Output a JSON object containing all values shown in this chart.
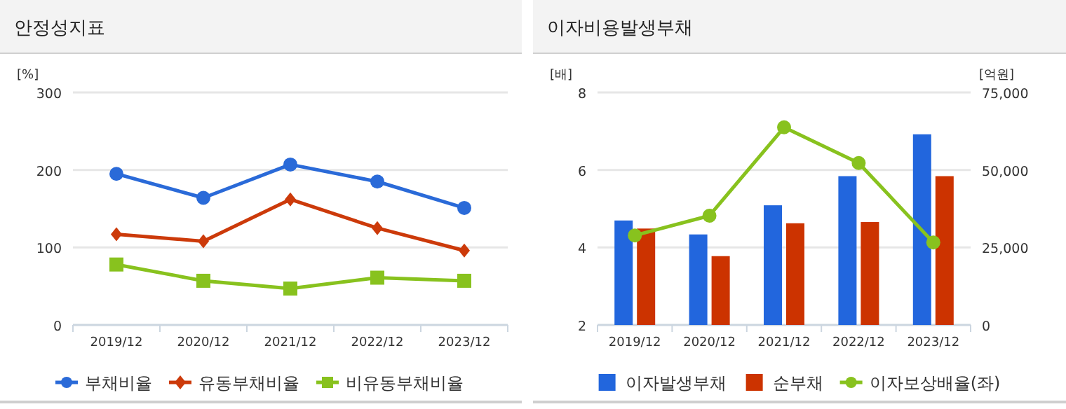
{
  "chart_data": [
    {
      "type": "line",
      "title": "안정성지표",
      "ylabel": "[%]",
      "categories": [
        "2019/12",
        "2020/12",
        "2021/12",
        "2022/12",
        "2023/12"
      ],
      "ylim": [
        0,
        300
      ],
      "yticks": [
        0,
        100,
        200,
        300
      ],
      "grid": "y",
      "legend": "bottom",
      "series": [
        {
          "name": "부채비율",
          "color": "#2a6ad8",
          "marker": "circle",
          "values": [
            195,
            164,
            207,
            185,
            151
          ]
        },
        {
          "name": "유동부채비율",
          "color": "#cc3a0a",
          "marker": "diamond",
          "values": [
            117,
            108,
            162,
            125,
            96
          ]
        },
        {
          "name": "비유동부채비율",
          "color": "#88c21e",
          "marker": "square",
          "values": [
            78,
            57,
            47,
            61,
            57
          ]
        }
      ]
    },
    {
      "type": "bar",
      "title": "이자비용발생부채",
      "ylabel": "[배]",
      "y2label": "[억원]",
      "categories": [
        "2019/12",
        "2020/12",
        "2021/12",
        "2022/12",
        "2023/12"
      ],
      "ylim": [
        2,
        8
      ],
      "yticks": [
        2,
        4,
        6,
        8
      ],
      "y2lim": [
        0,
        75000
      ],
      "y2ticks": [
        0,
        {
          "value": 25000,
          "label": "25,000"
        },
        {
          "value": 50000,
          "label": "50,000"
        },
        {
          "value": 75000,
          "label": "75,000"
        }
      ],
      "grid": "y",
      "legend": "bottom",
      "series": [
        {
          "name": "이자발생부채",
          "color": "#2266dd",
          "axis": "y2",
          "values": [
            33700,
            29200,
            38600,
            48000,
            61500
          ]
        },
        {
          "name": "순부채",
          "color": "#cc3300",
          "axis": "y2",
          "values": [
            31100,
            22200,
            32800,
            33200,
            48000
          ]
        },
        {
          "name": "이자보상배율(좌)",
          "type": "line",
          "color": "#88c21e",
          "marker": "circle",
          "values": [
            4.31,
            4.82,
            7.1,
            6.18,
            4.13
          ]
        }
      ]
    }
  ]
}
